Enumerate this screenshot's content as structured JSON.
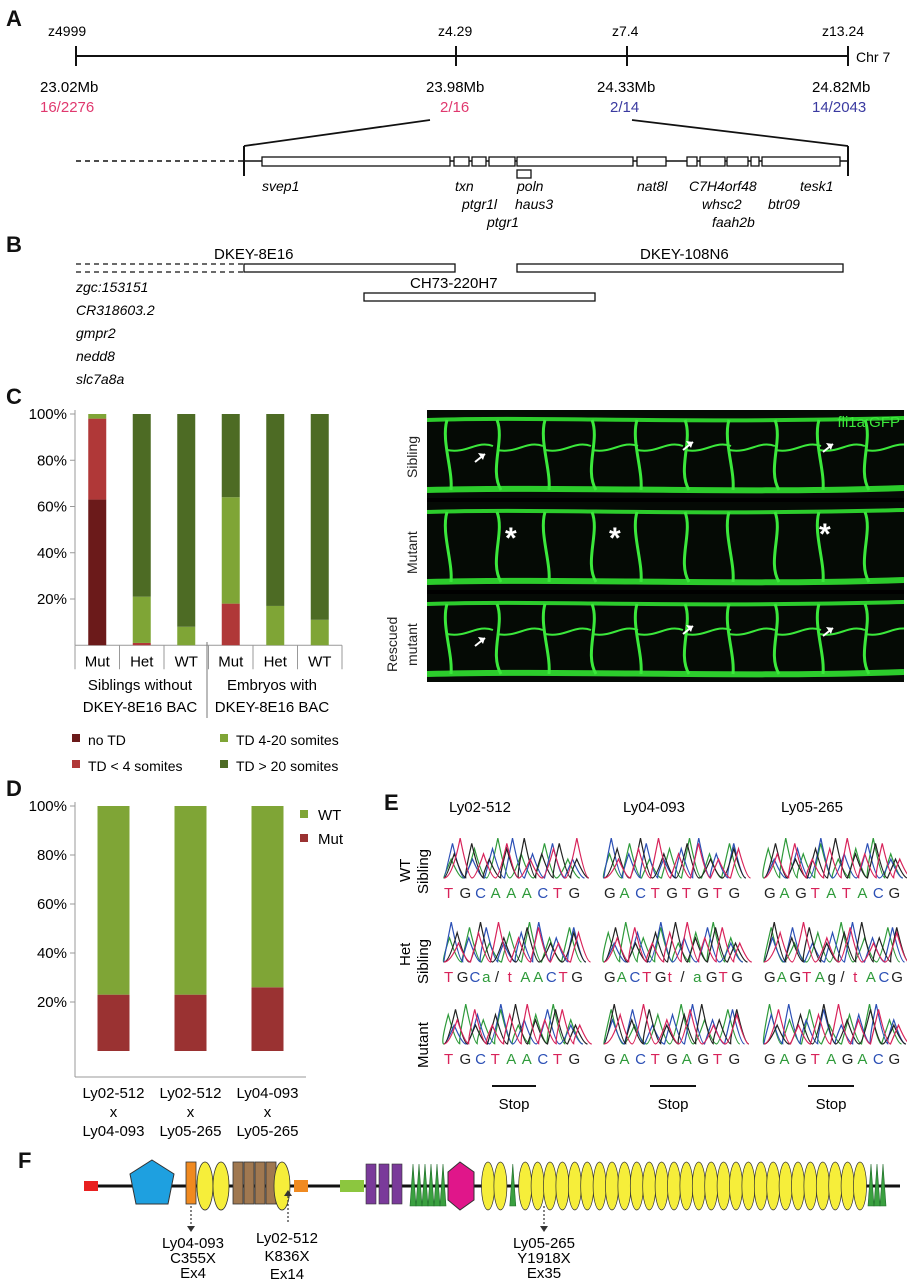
{
  "panel_labels": [
    "A",
    "B",
    "C",
    "D",
    "E",
    "F"
  ],
  "panelA": {
    "markers": [
      {
        "name": "z4999",
        "mb": "23.02Mb",
        "ratio": "16/2276",
        "ratio_color": "#e0386e"
      },
      {
        "name": "z4.29",
        "mb": "23.98Mb",
        "ratio": "2/16",
        "ratio_color": "#e0386e"
      },
      {
        "name": "z7.4",
        "mb": "24.33Mb",
        "ratio": "2/14",
        "ratio_color": "#3a3aa0"
      },
      {
        "name": "z13.24",
        "mb": "24.82Mb",
        "ratio": "14/2043",
        "ratio_color": "#3a3aa0"
      }
    ],
    "chromosome": "Chr 7",
    "genes": [
      "svep1",
      "txn",
      "ptgr1l",
      "ptgr1",
      "poln",
      "haus3",
      "nat8l",
      "C7H4orf48",
      "whsc2",
      "faah2b",
      "btr09",
      "tesk1"
    ]
  },
  "panelB": {
    "bacs": [
      "DKEY-8E16",
      "CH73-220H7",
      "DKEY-108N6"
    ],
    "genes": [
      "zgc:153151",
      "CR318603.2",
      "gmpr2",
      "nedd8",
      "slc7a8a"
    ]
  },
  "panelC": {
    "colors": {
      "no_td": "#6b1a1a",
      "td_lt4": "#b03838",
      "td_4_20": "#7fa536",
      "td_gt20": "#4d6b24"
    },
    "chart_data": {
      "type": "bar",
      "categories": [
        "Mut",
        "Het",
        "WT",
        "Mut",
        "Het",
        "WT"
      ],
      "groups": [
        "Siblings without DKEY-8E16 BAC",
        "Embryos with DKEY-8E16 BAC"
      ],
      "series": [
        {
          "name": "no TD",
          "values": [
            63,
            0,
            0,
            0,
            0,
            0
          ]
        },
        {
          "name": "TD < 4 somites",
          "values": [
            35,
            1,
            0,
            18,
            0,
            0
          ]
        },
        {
          "name": "TD 4-20 somites",
          "values": [
            2,
            20,
            8,
            46,
            17,
            11
          ]
        },
        {
          "name": "TD > 20 somites",
          "values": [
            0,
            79,
            92,
            36,
            83,
            89
          ]
        }
      ],
      "yticks": [
        "20%",
        "40%",
        "60%",
        "80%",
        "100%"
      ],
      "ylim": [
        0,
        100
      ]
    },
    "legend": [
      "no TD",
      "TD 4-20 somites",
      "TD < 4 somites",
      "TD > 20 somites"
    ],
    "micro": {
      "marker": "fli1a:GFP",
      "rows": [
        "Sibling",
        "Mutant",
        "Rescued mutant"
      ],
      "rescued_lines": [
        "Rescued",
        "mutant"
      ],
      "asterisk": "*"
    }
  },
  "panelD": {
    "colors": {
      "wt": "#7fa536",
      "mut": "#9a3232"
    },
    "chart_data": {
      "type": "bar",
      "categories": [
        "Ly02-512 x Ly04-093",
        "Ly02-512 x Ly05-265",
        "Ly04-093 x Ly05-265"
      ],
      "category_lines": [
        [
          "Ly02-512",
          "x",
          "Ly04-093"
        ],
        [
          "Ly02-512",
          "x",
          "Ly05-265"
        ],
        [
          "Ly04-093",
          "x",
          "Ly05-265"
        ]
      ],
      "series": [
        {
          "name": "WT",
          "values": [
            77,
            77,
            74
          ]
        },
        {
          "name": "Mut",
          "values": [
            23,
            23,
            26
          ]
        }
      ],
      "yticks": [
        "20%",
        "40%",
        "60%",
        "80%",
        "100%"
      ],
      "ylim": [
        0,
        100
      ]
    }
  },
  "panelE": {
    "alleles": [
      "Ly02-512",
      "Ly04-093",
      "Ly05-265"
    ],
    "rows": [
      {
        "label_lines": [
          "WT",
          "Sibling"
        ],
        "seqs": [
          "TGCAAACTG",
          "GACTGTGTG",
          "GAGTATACG"
        ]
      },
      {
        "label_lines": [
          "Het",
          "Sibling"
        ],
        "seqs": [
          "TGCa/tAACTG",
          "GACTGt/aGTG",
          "GAGTAg/tACG"
        ]
      },
      {
        "label_lines": [
          "Mutant"
        ],
        "seqs": [
          "TGCTAACTG",
          "GACTGAGTG",
          "GAGTAGACG"
        ]
      }
    ],
    "stop": "Stop",
    "base_colors": {
      "A": "#2e9a3a",
      "C": "#2b4fb5",
      "G": "#222222",
      "T": "#d8235a",
      "/": "#222222"
    }
  },
  "panelF": {
    "annotations": [
      {
        "lines": [
          "Ly04-093",
          "C355X",
          "Ex4"
        ]
      },
      {
        "lines": [
          "Ly02-512",
          "K836X",
          "Ex14"
        ]
      },
      {
        "lines": [
          "Ly05-265",
          "Y1918X",
          "Ex35"
        ]
      }
    ],
    "domain_colors": {
      "signal": "#e82020",
      "pentagon": "#1ea0e0",
      "orange": "#f08a20",
      "sushi": "#f6ee3a",
      "brown": "#a07850",
      "green_bar": "#8cc63f",
      "purple": "#7a3a9a",
      "egf": "#3aa040",
      "hexagon": "#e0168a"
    }
  }
}
